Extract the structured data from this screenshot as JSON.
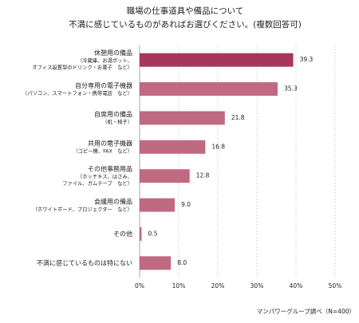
{
  "chart_data": {
    "type": "bar",
    "orientation": "horizontal",
    "title": [
      "職場の仕事道具や備品について",
      "不満に感じているものがあればお選びください。(複数回答可)"
    ],
    "categories": [
      "休憩用の備品",
      "自分専用の電子機器",
      "自席用の備品",
      "共用の電子機器",
      "その他事務用品",
      "会議用の備品",
      "その他",
      "不満に感じているものは特にない"
    ],
    "category_notes": [
      [
        "（冷蔵庫、お湯ポット、",
        "オフィス設置型のドリンク・お菓子　など）"
      ],
      [
        "（パソコン、スマートフォン・携帯電話　など）"
      ],
      [
        "（机・椅子）"
      ],
      [
        "（コピー機、FAX　など）"
      ],
      [
        "（ホッチキス、はさみ、",
        "ファイル、ガムテープ　など）"
      ],
      [
        "（ホワイトボード、プロジェクター　など）"
      ],
      null,
      null
    ],
    "values": [
      39.3,
      35.3,
      21.8,
      16.8,
      12.8,
      9.0,
      0.5,
      8.0
    ],
    "value_labels": [
      "39.3",
      "35.3",
      "21.8",
      "16.8",
      "12.8",
      "9.0",
      "0.5",
      "8.0"
    ],
    "colors": [
      "#a8355e",
      "#c06a82",
      "#c06a82",
      "#c06a82",
      "#c06a82",
      "#c06a82",
      "#c06a82",
      "#c06a82"
    ],
    "xlim": [
      0,
      50
    ],
    "xticks": [
      {
        "value": 0,
        "label": "0%"
      },
      {
        "value": 10,
        "label": "10%"
      },
      {
        "value": 20,
        "label": "20%"
      },
      {
        "value": 30,
        "label": "30%"
      },
      {
        "value": 40,
        "label": "40%"
      },
      {
        "value": 50,
        "label": "50%"
      }
    ],
    "grid": true,
    "source": "マンパワーグループ調べ（N=400）"
  }
}
